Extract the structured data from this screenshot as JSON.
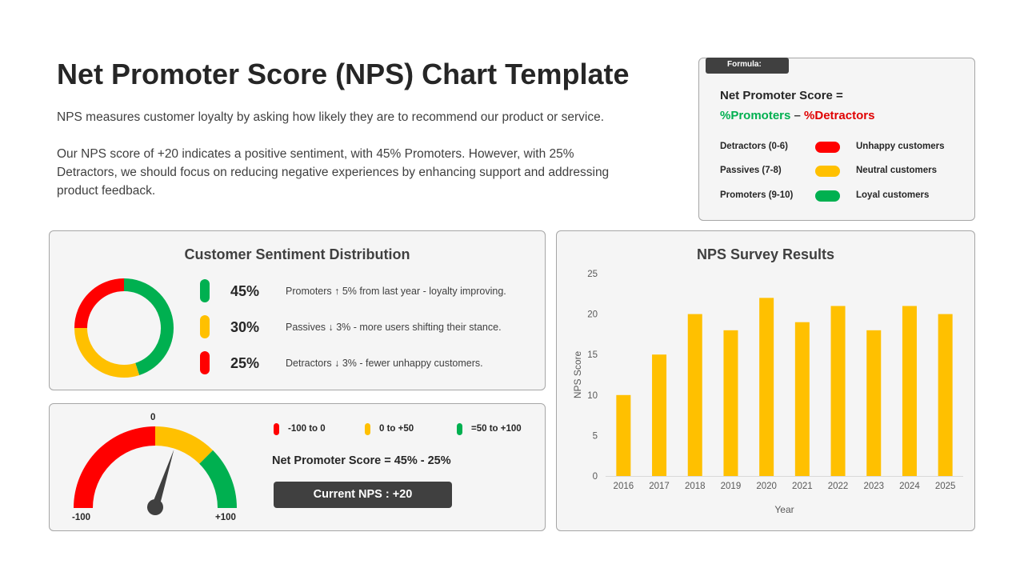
{
  "header": {
    "title": "Net Promoter Score (NPS) Chart Template",
    "intro_1": "NPS measures customer loyalty by asking how likely they are to recommend our product or service.",
    "intro_2": "Our NPS score of +20 indicates a positive sentiment, with 45% Promoters. However, with 25% Detractors, we should focus on reducing negative experiences by enhancing support and addressing product feedback."
  },
  "formula": {
    "tag": "Formula:",
    "title": "Net Promoter Score =",
    "promoters": "%Promoters",
    "minus": "–",
    "detractors": "%Detractors",
    "rows": [
      {
        "category": "Detractors (0-6)",
        "description": "Unhappy customers",
        "color": "#ff0000"
      },
      {
        "category": "Passives (7-8)",
        "description": "Neutral customers",
        "color": "#ffc000"
      },
      {
        "category": "Promoters (9-10)",
        "description": "Loyal customers",
        "color": "#00b050"
      }
    ]
  },
  "distribution": {
    "title": "Customer Sentiment Distribution",
    "segments": [
      {
        "pct": "45%",
        "value": 45,
        "note": "Promoters ↑ 5% from last year - loyalty improving.",
        "color": "#00b050"
      },
      {
        "pct": "30%",
        "value": 30,
        "note": "Passives ↓ 3% - more users shifting their stance.",
        "color": "#ffc000"
      },
      {
        "pct": "25%",
        "value": 25,
        "note": "Detractors ↓ 3% - fewer unhappy customers.",
        "color": "#ff0000"
      }
    ]
  },
  "gauge": {
    "label_min": "-100",
    "label_mid": "0",
    "label_max": "+100",
    "value": 20,
    "legend": [
      {
        "label": "-100 to 0",
        "color": "#ff0000"
      },
      {
        "label": "0 to +50",
        "color": "#ffc000"
      },
      {
        "label": "=50 to +100",
        "color": "#00b050"
      }
    ],
    "formula": "Net Promoter Score = 45% - 25%",
    "current": "Current NPS : +20"
  },
  "chart_data": {
    "type": "bar",
    "title": "NPS Survey Results",
    "xlabel": "Year",
    "ylabel": "NPS Score",
    "categories": [
      "2016",
      "2017",
      "2018",
      "2019",
      "2020",
      "2021",
      "2022",
      "2023",
      "2024",
      "2025"
    ],
    "values": [
      10,
      15,
      20,
      18,
      22,
      19,
      21,
      18,
      21,
      20
    ],
    "ylim": [
      0,
      25
    ],
    "yticks": [
      0,
      5,
      10,
      15,
      20,
      25
    ],
    "color": "#ffc000",
    "grid": false
  }
}
